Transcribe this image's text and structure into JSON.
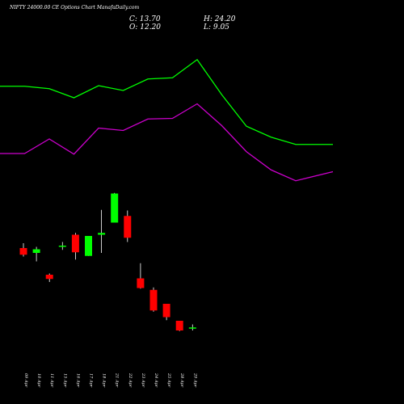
{
  "chart_data": {
    "type": "candlestick",
    "title": "NIFTY 24000.00  CE Options  Chart ManafaDaily.com",
    "ohlc": {
      "c": "C: 13.70",
      "o": "O: 12.20",
      "h": "H: 24.20",
      "l": "L: 9.05"
    },
    "categories": [
      "09 Apr",
      "10 Apr",
      "11 Apr",
      "15 Apr",
      "16 Apr",
      "17 Apr",
      "18 Apr",
      "21 Apr",
      "22 Apr",
      "23 Apr",
      "24 Apr",
      "25 Apr",
      "28 Apr",
      "29 Apr"
    ],
    "candles": [
      {
        "open": 204,
        "high": 212,
        "low": 190,
        "close": 193
      },
      {
        "open": 196,
        "high": 206,
        "low": 182,
        "close": 202
      },
      {
        "open": 160,
        "high": 162,
        "low": 148,
        "close": 153
      },
      {
        "open": 207,
        "high": 214,
        "low": 201,
        "close": 208
      },
      {
        "open": 226,
        "high": 229,
        "low": 185,
        "close": 197
      },
      {
        "open": 191,
        "high": 224,
        "low": 191,
        "close": 224
      },
      {
        "open": 226,
        "high": 267,
        "low": 196,
        "close": 229
      },
      {
        "open": 246,
        "high": 295,
        "low": 246,
        "close": 294
      },
      {
        "open": 257,
        "high": 266,
        "low": 214,
        "close": 221
      },
      {
        "open": 154,
        "high": 179,
        "low": 137,
        "close": 138
      },
      {
        "open": 135,
        "high": 139,
        "low": 99,
        "close": 101
      },
      {
        "open": 112,
        "high": 112,
        "low": 85,
        "close": 90
      },
      {
        "open": 84,
        "high": 84,
        "low": 67,
        "close": 68
      },
      {
        "open": 71,
        "high": 78,
        "low": 68,
        "close": 73
      }
    ],
    "series": [
      {
        "values": [
          471,
          471,
          467,
          452,
          472,
          464,
          483,
          485,
          515,
          457,
          405,
          387,
          375,
          375
        ]
      },
      {
        "values": [
          360,
          360,
          384,
          359,
          402,
          398,
          417,
          418,
          442,
          406,
          363,
          333,
          315,
          330
        ]
      }
    ],
    "ylim": [
      0,
      560
    ],
    "colors": {
      "up": "#00ff00",
      "down": "#ff0000",
      "line1": "#00ff00",
      "line2": "#cc00cc",
      "background": "#000000"
    }
  }
}
